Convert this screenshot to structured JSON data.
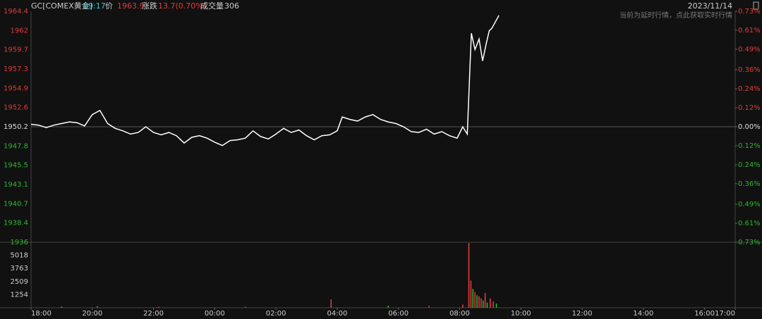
{
  "header": {
    "symbol": "GC[COMEX黄金]",
    "time": "09:17",
    "price_label": "价",
    "price": "1963.9",
    "change_label": "涨跌",
    "change": "13.7(0.70%)",
    "volume_label": "成交量",
    "volume": "306",
    "date": "2023/11/14",
    "notice": "当前为延时行情，点此获取实时行情"
  },
  "chart_data": [
    {
      "type": "line",
      "color": "#ffffff",
      "x": [
        0,
        15,
        30,
        45,
        60,
        75,
        90,
        105,
        120,
        135,
        150,
        165,
        180,
        195,
        210,
        225,
        240,
        255,
        270,
        285,
        300,
        315,
        330,
        345,
        360,
        375,
        390,
        405,
        420,
        435,
        450,
        465,
        480,
        495,
        510,
        525,
        540,
        555,
        570,
        585,
        600,
        610,
        625,
        640,
        655,
        670,
        685,
        700,
        715,
        730,
        745,
        760,
        775,
        790,
        805,
        820,
        835,
        846,
        855,
        860,
        863,
        870,
        878,
        885,
        892,
        898,
        903,
        917
      ],
      "values": [
        1950.5,
        1950.4,
        1950.1,
        1950.4,
        1950.6,
        1950.8,
        1950.7,
        1950.3,
        1951.7,
        1952.2,
        1950.6,
        1950.0,
        1949.7,
        1949.3,
        1949.5,
        1950.2,
        1949.5,
        1949.2,
        1949.5,
        1949.1,
        1948.2,
        1948.9,
        1949.1,
        1948.8,
        1948.3,
        1947.9,
        1948.5,
        1948.6,
        1948.8,
        1949.7,
        1949.0,
        1948.7,
        1949.3,
        1950.0,
        1949.5,
        1949.8,
        1949.1,
        1948.6,
        1949.1,
        1949.2,
        1949.7,
        1951.4,
        1951.1,
        1950.9,
        1951.4,
        1951.7,
        1951.1,
        1950.8,
        1950.6,
        1950.2,
        1949.6,
        1949.5,
        1949.9,
        1949.3,
        1949.6,
        1949.1,
        1948.8,
        1950.2,
        1949.3,
        1957.1,
        1961.7,
        1959.7,
        1961.0,
        1958.3,
        1960.4,
        1962.0,
        1962.3,
        1963.9
      ],
      "xlim": [
        0,
        1380
      ],
      "ylim": [
        1936.0,
        1964.4
      ],
      "yticks": [
        1964.4,
        1962.0,
        1959.7,
        1957.3,
        1954.9,
        1952.6,
        1950.2,
        1947.8,
        1945.5,
        1943.1,
        1940.7,
        1938.4,
        1936.0
      ],
      "y2lim": [
        -0.73,
        0.73
      ],
      "y2ticks": [
        {
          "value": 0.73,
          "label": "0.73%"
        },
        {
          "value": 0.61,
          "label": "0.61%"
        },
        {
          "value": 0.49,
          "label": "0.49%"
        },
        {
          "value": 0.36,
          "label": "0.36%"
        },
        {
          "value": 0.24,
          "label": "0.24%"
        },
        {
          "value": 0.12,
          "label": "0.12%"
        },
        {
          "value": 0,
          "label": "0.00%"
        },
        {
          "value": -0.12,
          "label": "0.12%"
        },
        {
          "value": -0.24,
          "label": "0.24%"
        },
        {
          "value": -0.36,
          "label": "0.36%"
        },
        {
          "value": -0.49,
          "label": "0.49%"
        },
        {
          "value": -0.61,
          "label": "0.61%"
        },
        {
          "value": -0.73,
          "label": "0.73%"
        }
      ]
    },
    {
      "type": "bar",
      "x": [
        60,
        130,
        250,
        420,
        588,
        700,
        780,
        846,
        858,
        862,
        866,
        870,
        874,
        878,
        882,
        886,
        890,
        894,
        900,
        906,
        912
      ],
      "values": [
        120,
        150,
        100,
        90,
        800,
        200,
        180,
        300,
        6200,
        2600,
        1800,
        1500,
        1200,
        1100,
        900,
        700,
        1400,
        500,
        900,
        600,
        400
      ],
      "colors": [
        "#2db52d",
        "#2db52d",
        "#e03b3b",
        "#2db52d",
        "#e03b3b",
        "#2db52d",
        "#e03b3b",
        "#e03b3b",
        "#e03b3b",
        "#e03b3b",
        "#2db52d",
        "#e03b3b",
        "#2db52d",
        "#e03b3b",
        "#e03b3b",
        "#2db52d",
        "#e03b3b",
        "#2db52d",
        "#e03b3b",
        "#e03b3b",
        "#2db52d"
      ],
      "xlim": [
        0,
        1380
      ],
      "ylim": [
        0,
        6272
      ],
      "yticks": [
        5018,
        3763,
        2509,
        1254
      ],
      "xticks": [
        {
          "value": 0,
          "label": "18:00"
        },
        {
          "value": 120,
          "label": "20:00"
        },
        {
          "value": 240,
          "label": "22:00"
        },
        {
          "value": 360,
          "label": "00:00"
        },
        {
          "value": 480,
          "label": "02:00"
        },
        {
          "value": 600,
          "label": "04:00"
        },
        {
          "value": 720,
          "label": "06:00"
        },
        {
          "value": 840,
          "label": "08:00"
        },
        {
          "value": 960,
          "label": "10:00"
        },
        {
          "value": 1080,
          "label": "12:00"
        },
        {
          "value": 1200,
          "label": "14:00"
        },
        {
          "value": 1320,
          "label": "16:00"
        },
        {
          "value": 1380,
          "label": "17:00"
        }
      ]
    }
  ]
}
